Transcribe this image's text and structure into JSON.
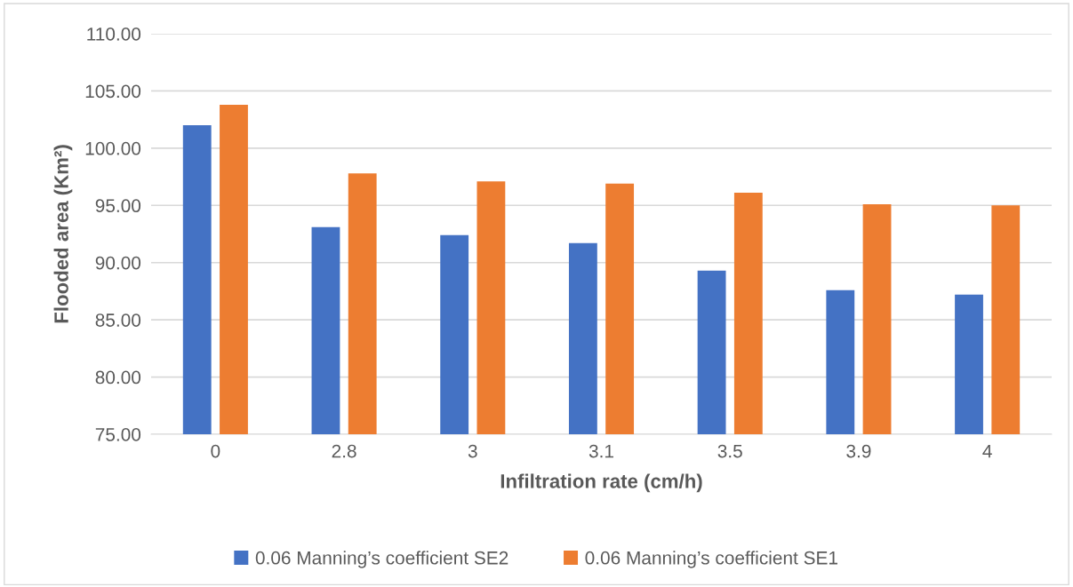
{
  "chart_data": {
    "type": "bar",
    "xlabel": "Infiltration rate (cm/h)",
    "ylabel": "Flooded area (Km²)",
    "categories": [
      "0",
      "2.8",
      "3",
      "3.1",
      "3.5",
      "3.9",
      "4"
    ],
    "series": [
      {
        "name": "0.06 Manning’s coefficient SE2",
        "color": "#4472c4",
        "values": [
          102.0,
          93.1,
          92.4,
          91.7,
          89.3,
          87.6,
          87.2
        ]
      },
      {
        "name": "0.06 Manning’s coefficient SE1",
        "color": "#ed7d31",
        "values": [
          103.8,
          97.8,
          97.1,
          96.9,
          96.1,
          95.1,
          95.0
        ]
      }
    ],
    "ylim": [
      75,
      110
    ],
    "yticks": [
      {
        "value": 75,
        "label": "75.00"
      },
      {
        "value": 80,
        "label": "80.00"
      },
      {
        "value": 85,
        "label": "85.00"
      },
      {
        "value": 90,
        "label": "90.00"
      },
      {
        "value": 95,
        "label": "95.00"
      },
      {
        "value": 100,
        "label": "100.00"
      },
      {
        "value": 105,
        "label": "105.00"
      },
      {
        "value": 110,
        "label": "110.00"
      }
    ],
    "grid": "y",
    "legend": "bottom"
  }
}
